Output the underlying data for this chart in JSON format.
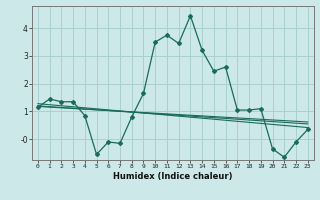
{
  "xlabel": "Humidex (Indice chaleur)",
  "bg_color": "#cce8e8",
  "grid_color": "#aad0d0",
  "line_color": "#1a6b5a",
  "xlim": [
    -0.5,
    23.5
  ],
  "ylim": [
    -0.75,
    4.8
  ],
  "x_ticks": [
    0,
    1,
    2,
    3,
    4,
    5,
    6,
    7,
    8,
    9,
    10,
    11,
    12,
    13,
    14,
    15,
    16,
    17,
    18,
    19,
    20,
    21,
    22,
    23
  ],
  "y_ticks": [
    0,
    1,
    2,
    3,
    4
  ],
  "y_tick_labels": [
    "-0",
    "1",
    "2",
    "3",
    "4"
  ],
  "series1_x": [
    0,
    1,
    2,
    3,
    4,
    5,
    6,
    7,
    8,
    9,
    10,
    11,
    12,
    13,
    14,
    15,
    16,
    17,
    18,
    19,
    20,
    21,
    22,
    23
  ],
  "series1_y": [
    1.15,
    1.45,
    1.35,
    1.35,
    0.85,
    -0.55,
    -0.1,
    -0.15,
    0.8,
    1.65,
    3.5,
    3.75,
    3.45,
    4.45,
    3.2,
    2.45,
    2.6,
    1.05,
    1.05,
    1.1,
    -0.35,
    -0.65,
    -0.1,
    0.35
  ],
  "series2_x": [
    0,
    23
  ],
  "series2_y": [
    1.2,
    0.55
  ],
  "series3_x": [
    0,
    23
  ],
  "series3_y": [
    1.28,
    0.42
  ],
  "series4_x": [
    0,
    23
  ],
  "series4_y": [
    1.18,
    0.62
  ]
}
